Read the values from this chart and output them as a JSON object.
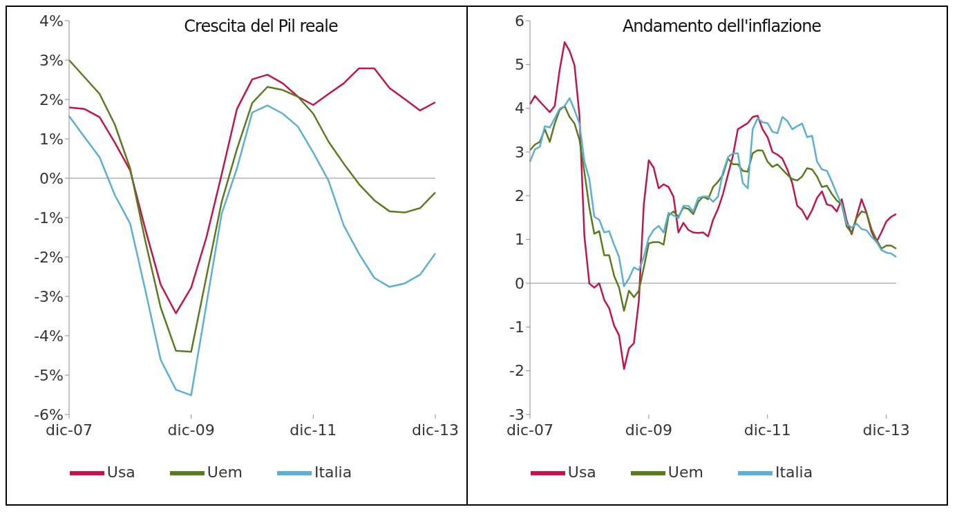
{
  "chart_data": [
    {
      "type": "line",
      "title": "Crescita del Pil reale",
      "categories": [
        "dic-07",
        null,
        null,
        null,
        null,
        null,
        null,
        null,
        "dic-09",
        null,
        null,
        null,
        null,
        null,
        null,
        null,
        "dic-11",
        null,
        null,
        null,
        null,
        null,
        null,
        null,
        "dic-13"
      ],
      "series": [
        {
          "name": "Usa",
          "color": "#c0144a",
          "values": [
            1.8,
            1.76,
            1.55,
            0.9,
            0.2,
            -1.3,
            -2.7,
            -3.43,
            -2.78,
            -1.5,
            0.1,
            1.76,
            2.51,
            2.63,
            2.41,
            2.07,
            1.86,
            2.14,
            2.41,
            2.79,
            2.79,
            2.29,
            2.01,
            1.72,
            1.93
          ]
        },
        {
          "name": "Uem",
          "color": "#5a7a1e",
          "values": [
            3.0,
            2.57,
            2.14,
            1.36,
            0.25,
            -1.6,
            -3.28,
            -4.38,
            -4.41,
            -2.5,
            -0.6,
            0.74,
            1.91,
            2.32,
            2.24,
            2.07,
            1.64,
            0.93,
            0.37,
            -0.15,
            -0.56,
            -0.84,
            -0.87,
            -0.76,
            -0.36
          ]
        },
        {
          "name": "Italia",
          "color": "#5bb0d0",
          "values": [
            1.58,
            1.05,
            0.53,
            -0.43,
            -1.15,
            -2.85,
            -4.61,
            -5.37,
            -5.51,
            -3.2,
            -0.9,
            0.25,
            1.67,
            1.85,
            1.64,
            1.31,
            0.65,
            -0.06,
            -1.2,
            -1.92,
            -2.53,
            -2.76,
            -2.67,
            -2.45,
            -1.91
          ]
        }
      ],
      "ylim": [
        -6,
        4
      ],
      "yticks": [
        {
          "value": -6,
          "label": "-6%"
        },
        {
          "value": -5,
          "label": "-5%"
        },
        {
          "value": -4,
          "label": "-4%"
        },
        {
          "value": -3,
          "label": "-3%"
        },
        {
          "value": -2,
          "label": "-2%"
        },
        {
          "value": -1,
          "label": "-1%"
        },
        {
          "value": 0,
          "label": "0%"
        },
        {
          "value": 1,
          "label": "1%"
        },
        {
          "value": 2,
          "label": "2%"
        },
        {
          "value": 3,
          "label": "3%"
        },
        {
          "value": 4,
          "label": "4%"
        }
      ],
      "ref_lines": [
        {
          "axis": "y",
          "value": 0,
          "color": "#8c8c8c"
        }
      ],
      "grid": false,
      "legend": "bottom",
      "marker": "none",
      "line_style": "solid"
    },
    {
      "type": "line",
      "title": "Andamento dell'inflazione",
      "categories": [
        "dic-07",
        null,
        null,
        null,
        null,
        null,
        null,
        null,
        null,
        null,
        null,
        null,
        null,
        null,
        null,
        null,
        null,
        null,
        null,
        null,
        null,
        null,
        null,
        null,
        "dic-09",
        null,
        null,
        null,
        null,
        null,
        null,
        null,
        null,
        null,
        null,
        null,
        null,
        null,
        null,
        null,
        null,
        null,
        null,
        null,
        null,
        null,
        null,
        null,
        "dic-11",
        null,
        null,
        null,
        null,
        null,
        null,
        null,
        null,
        null,
        null,
        null,
        null,
        null,
        null,
        null,
        null,
        null,
        null,
        null,
        null,
        null,
        null,
        null,
        "dic-13",
        null,
        null
      ],
      "series": [
        {
          "name": "Usa",
          "color": "#c0144a",
          "values": [
            4.09,
            4.28,
            4.15,
            4.03,
            3.91,
            4.05,
            4.88,
            5.51,
            5.31,
            4.98,
            3.83,
            1.07,
            -0.01,
            -0.1,
            0.0,
            -0.38,
            -0.57,
            -0.97,
            -1.19,
            -1.96,
            -1.49,
            -1.37,
            -0.4,
            1.8,
            2.81,
            2.64,
            2.17,
            2.26,
            2.2,
            1.98,
            1.16,
            1.38,
            1.22,
            1.16,
            1.15,
            1.16,
            1.07,
            1.45,
            1.7,
            2.04,
            2.48,
            2.91,
            3.52,
            3.59,
            3.66,
            3.8,
            3.83,
            3.52,
            3.34,
            3.0,
            2.94,
            2.85,
            2.6,
            2.29,
            1.77,
            1.67,
            1.46,
            1.67,
            1.95,
            2.1,
            1.8,
            1.77,
            1.64,
            1.92,
            1.43,
            1.12,
            1.52,
            1.92,
            1.61,
            1.18,
            0.94,
            1.16,
            1.41,
            1.52,
            1.58
          ]
        },
        {
          "name": "Uem",
          "color": "#5a7a1e",
          "values": [
            3.04,
            3.17,
            3.23,
            3.52,
            3.23,
            3.65,
            3.96,
            4.05,
            3.8,
            3.65,
            3.28,
            2.54,
            1.73,
            1.13,
            1.19,
            0.64,
            0.64,
            0.17,
            -0.1,
            -0.63,
            -0.17,
            -0.32,
            -0.17,
            0.36,
            0.91,
            0.94,
            0.94,
            0.88,
            1.55,
            1.64,
            1.52,
            1.73,
            1.7,
            1.58,
            1.86,
            1.98,
            1.92,
            2.2,
            2.32,
            2.48,
            2.85,
            2.72,
            2.72,
            2.57,
            2.55,
            2.97,
            3.04,
            3.03,
            2.78,
            2.66,
            2.72,
            2.6,
            2.48,
            2.38,
            2.35,
            2.44,
            2.63,
            2.6,
            2.44,
            2.2,
            2.23,
            2.04,
            1.89,
            1.8,
            1.3,
            1.15,
            1.49,
            1.64,
            1.61,
            1.24,
            1.0,
            0.79,
            0.86,
            0.86,
            0.79
          ]
        },
        {
          "name": "Italia",
          "color": "#5bb0d0",
          "values": [
            2.78,
            3.06,
            3.12,
            3.59,
            3.56,
            3.77,
            3.99,
            4.05,
            4.23,
            3.96,
            3.65,
            2.78,
            2.38,
            1.52,
            1.45,
            1.16,
            1.19,
            0.88,
            0.6,
            -0.07,
            0.11,
            0.36,
            0.3,
            0.6,
            1.04,
            1.22,
            1.31,
            1.16,
            1.61,
            1.55,
            1.49,
            1.77,
            1.77,
            1.64,
            1.95,
            1.98,
            1.98,
            1.86,
            1.98,
            2.54,
            2.88,
            2.97,
            2.97,
            2.29,
            2.17,
            3.52,
            3.77,
            3.68,
            3.66,
            3.46,
            3.43,
            3.8,
            3.71,
            3.52,
            3.59,
            3.65,
            3.34,
            3.37,
            2.78,
            2.6,
            2.57,
            2.32,
            2.04,
            1.8,
            1.36,
            1.27,
            1.36,
            1.24,
            1.21,
            1.06,
            0.95,
            0.76,
            0.7,
            0.68,
            0.6
          ]
        }
      ],
      "ylim": [
        -3,
        6
      ],
      "yticks": [
        -3,
        -2,
        -1,
        0,
        1,
        2,
        3,
        4,
        5,
        6
      ],
      "ref_lines": [
        {
          "axis": "y",
          "value": 0,
          "color": "#8c8c8c"
        }
      ],
      "grid": false,
      "legend": "bottom",
      "marker": "none",
      "line_style": "solid"
    }
  ]
}
